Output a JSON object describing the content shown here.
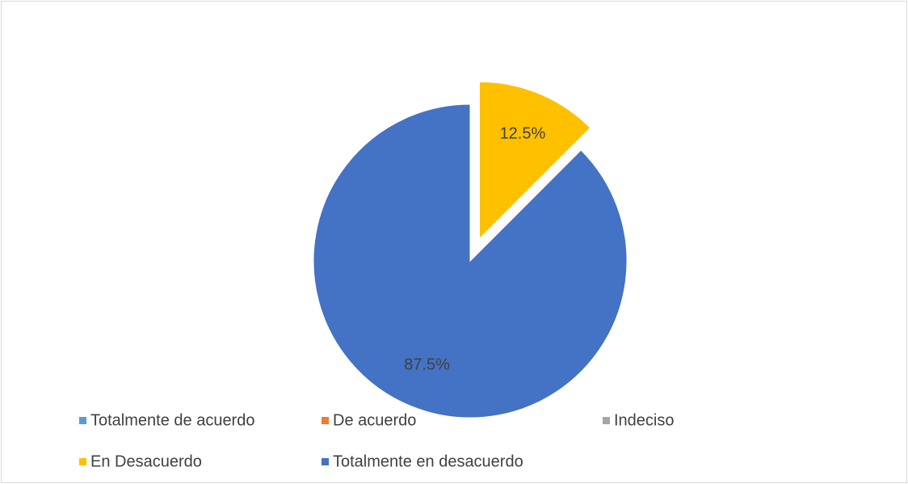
{
  "chart_data": {
    "type": "pie",
    "categories": [
      "Totalmente de acuerdo",
      "De acuerdo",
      "Indeciso",
      "En Desacuerdo",
      "Totalmente en desacuerdo"
    ],
    "values": [
      0,
      0,
      0,
      12.5,
      87.5
    ],
    "value_labels": [
      null,
      null,
      null,
      "12.5%",
      "87.5%"
    ],
    "colors": [
      "#5b9bd5",
      "#ed7d31",
      "#a5a5a5",
      "#ffc000",
      "#4472c4"
    ],
    "exploded": [
      false,
      false,
      false,
      true,
      false
    ],
    "legend": "bottom"
  }
}
